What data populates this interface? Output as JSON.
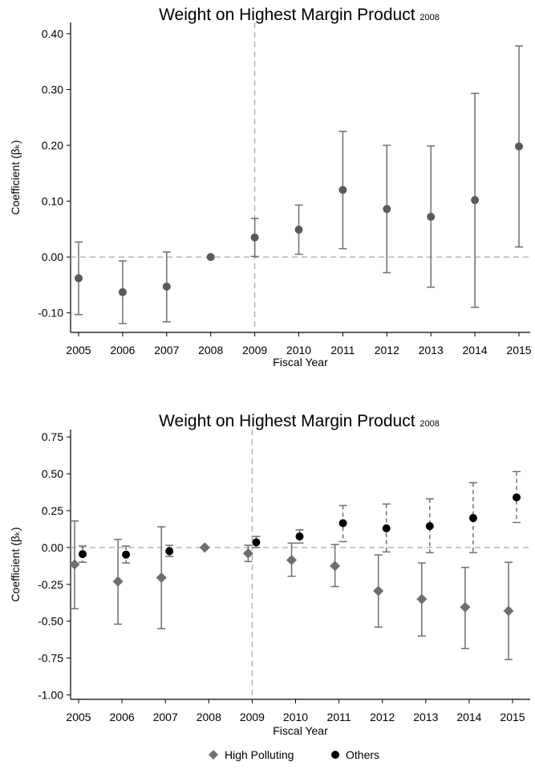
{
  "chart_data": [
    {
      "type": "scatter",
      "title": "Weight on Highest Margin Product",
      "title_subscript": "2008",
      "xlabel": "Fiscal Year",
      "ylabel": "Coefficient (βₖ)",
      "ylim": [
        -0.135,
        0.42
      ],
      "yticks": [
        -0.1,
        0.0,
        0.1,
        0.2,
        0.3,
        0.4
      ],
      "ytick_labels": [
        "-0.10",
        "0.00",
        "0.10",
        "0.20",
        "0.30",
        "0.40"
      ],
      "x": [
        "2005",
        "2006",
        "2007",
        "2008",
        "2009",
        "2010",
        "2011",
        "2012",
        "2013",
        "2014",
        "2015"
      ],
      "event_line_x": "2009",
      "zero_line": true,
      "grid": false,
      "series": [
        {
          "marker": "circle",
          "color": "#5a5a5a",
          "values": [
            -0.038,
            -0.063,
            -0.053,
            0.0,
            0.035,
            0.049,
            0.12,
            0.086,
            0.072,
            0.102,
            0.198
          ],
          "ci_low": [
            -0.103,
            -0.119,
            -0.116,
            0.0,
            0.001,
            0.005,
            0.015,
            -0.028,
            -0.054,
            -0.09,
            0.018
          ],
          "ci_high": [
            0.027,
            -0.007,
            0.009,
            0.0,
            0.069,
            0.093,
            0.225,
            0.2,
            0.199,
            0.293,
            0.378
          ]
        }
      ]
    },
    {
      "type": "scatter",
      "title": "Weight on Highest Margin Product",
      "title_subscript": "2008",
      "xlabel": "Fiscal Year",
      "ylabel": "Coefficient (βₖ)",
      "ylim": [
        -1.03,
        0.8
      ],
      "yticks": [
        -1.0,
        -0.75,
        -0.5,
        -0.25,
        0.0,
        0.25,
        0.5,
        0.75
      ],
      "ytick_labels": [
        "-1.00",
        "-0.75",
        "-0.50",
        "-0.25",
        "0.00",
        "0.25",
        "0.50",
        "0.75"
      ],
      "x": [
        "2005",
        "2006",
        "2007",
        "2008",
        "2009",
        "2010",
        "2011",
        "2012",
        "2013",
        "2014",
        "2015"
      ],
      "event_line_x": "2009",
      "zero_line": true,
      "grid": false,
      "legend_position": "bottom",
      "series": [
        {
          "name": "High Polluting",
          "marker": "diamond",
          "color": "#6e6e6e",
          "ci_style": "solid",
          "values": [
            -0.115,
            -0.23,
            -0.205,
            0.0,
            -0.04,
            -0.085,
            -0.125,
            -0.295,
            -0.35,
            -0.405,
            -0.43
          ],
          "ci_low": [
            -0.415,
            -0.52,
            -0.55,
            0.0,
            -0.095,
            -0.195,
            -0.265,
            -0.54,
            -0.6,
            -0.685,
            -0.76
          ],
          "ci_high": [
            0.18,
            0.055,
            0.14,
            0.0,
            0.015,
            0.03,
            0.02,
            -0.05,
            -0.105,
            -0.135,
            -0.1
          ]
        },
        {
          "name": "Others",
          "marker": "circle",
          "color": "#000000",
          "ci_style": "dashed",
          "values": [
            -0.045,
            -0.048,
            -0.025,
            null,
            0.035,
            0.075,
            0.165,
            0.13,
            0.145,
            0.2,
            0.34
          ],
          "ci_low": [
            -0.1,
            -0.105,
            -0.06,
            null,
            0.0,
            0.03,
            0.04,
            -0.03,
            -0.035,
            -0.035,
            0.17
          ],
          "ci_high": [
            0.01,
            0.01,
            0.015,
            null,
            0.075,
            0.12,
            0.285,
            0.295,
            0.33,
            0.44,
            0.515
          ]
        }
      ]
    }
  ]
}
